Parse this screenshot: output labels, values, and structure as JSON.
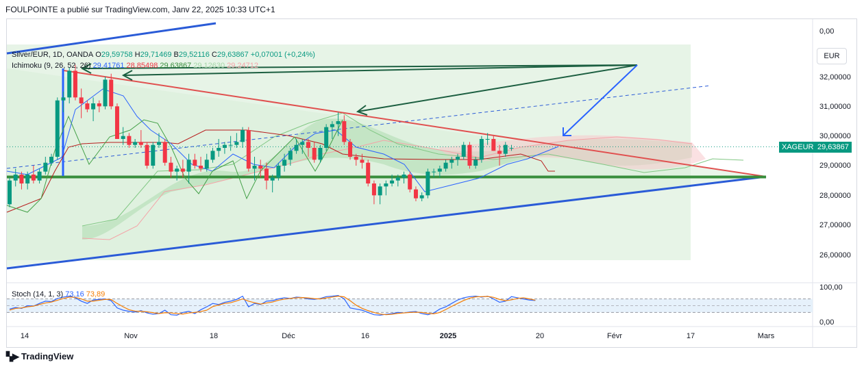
{
  "header": "FOULPOINTE a publié sur TradingView.com, Janv 22, 2025 10:33 UTC+1",
  "legend": {
    "symbol": "Silver/EUR, 1D, OANDA",
    "o_label": "O",
    "o": "29,59758",
    "h_label": "H",
    "h": "29,71469",
    "b_label": "B",
    "b": "29,52116",
    "c_label": "C",
    "c": "29,63867",
    "change": "+0,07001 (+0,24%)",
    "ichimoku": "Ichimoku (9, 26, 52, 26)",
    "ichi_values": [
      "29,41761",
      "28,85498",
      "29,63867",
      "29,12630",
      "29,24712"
    ],
    "stoch": "Stoch (14, 1, 3)",
    "stoch_values": [
      "73,16",
      "73,89"
    ]
  },
  "currency_button": "EUR",
  "price_tag": {
    "symbol": "XAGEUR",
    "value": "29,63867"
  },
  "brand": "TradingView",
  "colors": {
    "up": "#089981",
    "down": "#f23645",
    "kijun": "#b71c1c",
    "tenkan": "#2962ff",
    "chikou": "#43a047",
    "trend_red": "#e0504f",
    "trend_blue": "#2a5bd7",
    "support": "#388e3c",
    "stoch_k": "#2962ff",
    "stoch_d": "#f57c00"
  },
  "chart_data": [
    {
      "type": "candlestick",
      "title": "Silver/EUR, 1D, OANDA",
      "y_axis_labels": [
        "0,00",
        "32,00000",
        "31,00000",
        "30,00000",
        "29,00000",
        "28,00000",
        "27,00000",
        "26,00000"
      ],
      "ylim": [
        25.5,
        33.2
      ],
      "x_axis_labels": [
        "14",
        "Nov",
        "18",
        "Déc",
        "16",
        "2025",
        "20",
        "Févr",
        "17",
        "Mars"
      ],
      "candles_ohlc": [
        [
          27.7,
          28.6,
          27.6,
          28.5
        ],
        [
          28.5,
          28.9,
          28.3,
          28.7
        ],
        [
          28.7,
          28.8,
          28.2,
          28.4
        ],
        [
          28.4,
          28.8,
          28.2,
          28.7
        ],
        [
          28.7,
          29.0,
          28.4,
          28.5
        ],
        [
          28.5,
          28.9,
          28.4,
          28.8
        ],
        [
          28.8,
          29.3,
          28.7,
          29.1
        ],
        [
          29.1,
          29.4,
          29.0,
          29.3
        ],
        [
          29.3,
          31.3,
          29.2,
          31.2
        ],
        [
          31.2,
          31.5,
          30.8,
          31.3
        ],
        [
          31.3,
          32.3,
          31.1,
          32.2
        ],
        [
          32.2,
          32.4,
          31.2,
          31.3
        ],
        [
          31.3,
          31.6,
          30.6,
          31.1
        ],
        [
          31.1,
          31.2,
          30.8,
          30.9
        ],
        [
          30.9,
          31.3,
          30.5,
          31.1
        ],
        [
          31.1,
          31.2,
          30.8,
          31.0
        ],
        [
          31.0,
          32.0,
          30.9,
          31.9
        ],
        [
          31.9,
          32.1,
          30.9,
          31.0
        ],
        [
          31.0,
          31.1,
          29.9,
          29.9
        ],
        [
          29.9,
          30.3,
          29.7,
          30.0
        ],
        [
          30.0,
          30.1,
          29.6,
          29.7
        ],
        [
          29.7,
          29.9,
          29.6,
          29.8
        ],
        [
          29.8,
          30.2,
          29.6,
          29.7
        ],
        [
          29.7,
          29.8,
          28.9,
          29.0
        ],
        [
          29.0,
          29.8,
          28.9,
          29.7
        ],
        [
          29.7,
          30.1,
          29.6,
          29.8
        ],
        [
          29.8,
          29.9,
          29.0,
          29.1
        ],
        [
          29.1,
          29.3,
          28.6,
          28.8
        ],
        [
          28.8,
          29.0,
          28.5,
          28.9
        ],
        [
          28.9,
          29.2,
          28.6,
          28.8
        ],
        [
          28.8,
          29.4,
          28.4,
          29.2
        ],
        [
          29.2,
          29.4,
          28.9,
          29.0
        ],
        [
          29.0,
          29.3,
          28.8,
          28.9
        ],
        [
          28.9,
          29.4,
          28.8,
          29.2
        ],
        [
          29.2,
          29.6,
          29.1,
          29.5
        ],
        [
          29.5,
          29.9,
          29.3,
          29.6
        ],
        [
          29.6,
          29.8,
          29.4,
          29.7
        ],
        [
          29.7,
          30.0,
          29.5,
          29.7
        ],
        [
          29.7,
          30.1,
          29.6,
          29.8
        ],
        [
          29.8,
          30.3,
          29.6,
          30.2
        ],
        [
          30.2,
          30.3,
          28.8,
          28.9
        ],
        [
          28.9,
          29.3,
          28.5,
          29.0
        ],
        [
          29.0,
          29.2,
          28.6,
          28.9
        ],
        [
          28.9,
          29.1,
          28.2,
          28.5
        ],
        [
          28.5,
          28.7,
          28.1,
          28.6
        ],
        [
          28.6,
          29.1,
          28.5,
          29.0
        ],
        [
          29.0,
          29.4,
          28.8,
          29.2
        ],
        [
          29.2,
          29.6,
          29.0,
          29.5
        ],
        [
          29.5,
          29.9,
          29.4,
          29.7
        ],
        [
          29.7,
          29.9,
          29.4,
          29.8
        ],
        [
          29.8,
          29.9,
          29.3,
          29.6
        ],
        [
          29.6,
          29.8,
          29.1,
          29.2
        ],
        [
          29.2,
          29.7,
          29.1,
          29.6
        ],
        [
          29.6,
          30.4,
          29.5,
          30.3
        ],
        [
          30.3,
          30.5,
          29.9,
          30.4
        ],
        [
          30.4,
          30.8,
          30.0,
          30.5
        ],
        [
          30.5,
          30.7,
          29.7,
          29.8
        ],
        [
          29.8,
          29.9,
          29.2,
          29.3
        ],
        [
          29.3,
          29.4,
          29.0,
          29.2
        ],
        [
          29.2,
          29.4,
          28.9,
          29.1
        ],
        [
          29.1,
          29.2,
          28.3,
          28.4
        ],
        [
          28.4,
          28.5,
          27.7,
          28.0
        ],
        [
          28.0,
          28.4,
          27.7,
          28.3
        ],
        [
          28.3,
          28.5,
          28.0,
          28.4
        ],
        [
          28.4,
          28.7,
          28.3,
          28.5
        ],
        [
          28.5,
          28.7,
          28.3,
          28.6
        ],
        [
          28.6,
          28.8,
          28.4,
          28.7
        ],
        [
          28.7,
          28.8,
          28.1,
          28.2
        ],
        [
          28.2,
          28.3,
          27.8,
          27.9
        ],
        [
          27.9,
          28.1,
          27.8,
          28.0
        ],
        [
          28.0,
          28.9,
          27.9,
          28.8
        ],
        [
          28.8,
          28.9,
          28.6,
          28.8
        ],
        [
          28.8,
          29.0,
          28.6,
          28.9
        ],
        [
          28.9,
          29.2,
          28.8,
          29.1
        ],
        [
          29.1,
          29.3,
          28.9,
          29.2
        ],
        [
          29.2,
          29.4,
          29.0,
          29.3
        ],
        [
          29.3,
          29.8,
          29.2,
          29.7
        ],
        [
          29.7,
          29.8,
          28.9,
          29.0
        ],
        [
          29.0,
          29.3,
          28.9,
          29.2
        ],
        [
          29.2,
          30.0,
          29.1,
          29.9
        ],
        [
          29.9,
          30.1,
          29.7,
          29.9
        ],
        [
          29.9,
          30.0,
          29.5,
          29.5
        ],
        [
          29.5,
          29.7,
          29.0,
          29.4
        ],
        [
          29.4,
          29.8,
          29.3,
          29.7
        ],
        [
          29.6,
          29.7,
          29.5,
          29.6
        ]
      ],
      "support_level": 28.62,
      "current_price": 29.63867
    },
    {
      "type": "line",
      "title": "Stoch (14, 1, 3)",
      "y_axis_labels": [
        "100,00",
        "0,00"
      ],
      "ylim": [
        0,
        100
      ],
      "series": [
        {
          "values": [
            35,
            42,
            38,
            50,
            48,
            60,
            70,
            68,
            82,
            88,
            92,
            85,
            70,
            60,
            75,
            78,
            80,
            72,
            40,
            30,
            25,
            22,
            28,
            18,
            12,
            15,
            30,
            10,
            8,
            20,
            25,
            15,
            32,
            45,
            60,
            55,
            65,
            70,
            78,
            92,
            45,
            60,
            55,
            70,
            72,
            80,
            85,
            82,
            88,
            86,
            80,
            78,
            82,
            90,
            92,
            95,
            80,
            40,
            35,
            30,
            20,
            10,
            8,
            12,
            15,
            20,
            18,
            22,
            24,
            15,
            10,
            18,
            35,
            45,
            60,
            75,
            85,
            90,
            92,
            88,
            92,
            80,
            65,
            70,
            90,
            85,
            80,
            75,
            73
          ]
        },
        {
          "values": [
            30,
            38,
            40,
            45,
            48,
            55,
            62,
            66,
            74,
            82,
            88,
            87,
            80,
            70,
            70,
            74,
            78,
            77,
            60,
            45,
            32,
            26,
            25,
            23,
            19,
            15,
            19,
            18,
            15,
            13,
            18,
            20,
            24,
            30,
            46,
            53,
            60,
            63,
            71,
            80,
            70,
            63,
            57,
            62,
            66,
            74,
            79,
            82,
            85,
            86,
            84,
            81,
            80,
            84,
            88,
            92,
            89,
            72,
            52,
            38,
            28,
            20,
            13,
            10,
            12,
            16,
            18,
            20,
            21,
            20,
            16,
            14,
            20,
            33,
            47,
            60,
            73,
            83,
            89,
            90,
            91,
            87,
            78,
            72,
            76,
            82,
            85,
            80,
            74
          ]
        }
      ]
    }
  ]
}
